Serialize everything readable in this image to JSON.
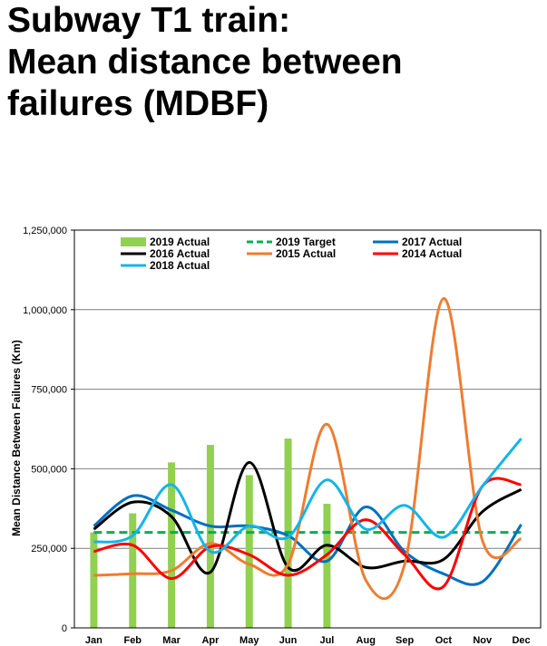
{
  "page": {
    "title_lines": [
      "Subway T1 train:",
      "Mean distance between",
      "failures (MDBF)"
    ]
  },
  "chart_data": {
    "type": "bar",
    "title": "",
    "xlabel": "",
    "ylabel": "Mean Distance Between Failures (Km)",
    "categories": [
      "Jan",
      "Feb",
      "Mar",
      "Apr",
      "May",
      "Jun",
      "Jul",
      "Aug",
      "Sep",
      "Oct",
      "Nov",
      "Dec"
    ],
    "ylim": [
      0,
      1250000
    ],
    "yticks": [
      0,
      250000,
      500000,
      750000,
      1000000,
      1250000
    ],
    "ytick_labels": [
      "0",
      "250,000",
      "500,000",
      "750,000",
      "1,000,000",
      "1,250,000"
    ],
    "grid": "horizontal",
    "legend_position": "top",
    "bar_series": [
      {
        "name": "2019 Actual",
        "color": "#92d050",
        "values": [
          300000,
          360000,
          520000,
          575000,
          480000,
          595000,
          390000,
          null,
          null,
          null,
          null,
          null
        ]
      }
    ],
    "target_series": [
      {
        "name": "2019 Target",
        "color": "#00b050",
        "values": [
          300000,
          300000,
          300000,
          300000,
          300000,
          300000,
          300000,
          300000,
          300000,
          300000,
          300000,
          300000
        ]
      }
    ],
    "line_series": [
      {
        "name": "2017 Actual",
        "color": "#0070c0",
        "values": [
          320000,
          415000,
          370000,
          320000,
          320000,
          290000,
          210000,
          380000,
          240000,
          170000,
          145000,
          325000
        ]
      },
      {
        "name": "2016 Actual",
        "color": "#000000",
        "values": [
          310000,
          395000,
          350000,
          175000,
          520000,
          190000,
          260000,
          190000,
          210000,
          215000,
          365000,
          435000
        ]
      },
      {
        "name": "2015 Actual",
        "color": "#ed7d31",
        "values": [
          165000,
          170000,
          180000,
          265000,
          200000,
          200000,
          640000,
          150000,
          200000,
          1035000,
          275000,
          280000
        ]
      },
      {
        "name": "2014 Actual",
        "color": "#ff0000",
        "values": [
          240000,
          260000,
          155000,
          255000,
          230000,
          165000,
          230000,
          340000,
          230000,
          130000,
          445000,
          450000
        ]
      },
      {
        "name": "2018 Actual",
        "color": "#13b5ea",
        "values": [
          270000,
          290000,
          450000,
          240000,
          320000,
          285000,
          465000,
          310000,
          385000,
          285000,
          445000,
          595000
        ]
      }
    ]
  }
}
